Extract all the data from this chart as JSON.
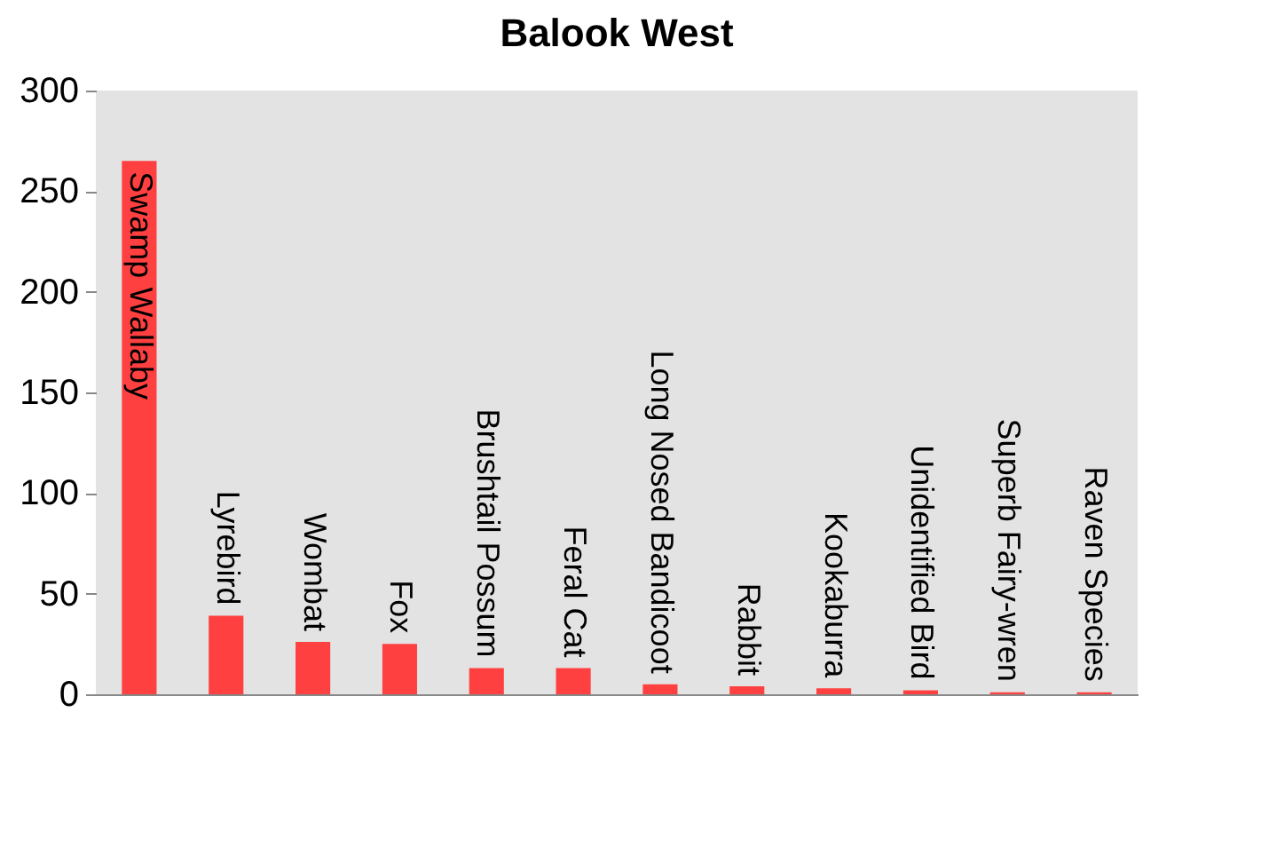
{
  "chart_data": {
    "type": "bar",
    "title": "Balook West",
    "categories": [
      "Swamp Wallaby",
      "Lyrebird",
      "Wombat",
      "Fox",
      "Brushtail Possum",
      "Feral Cat",
      "Long Nosed Bandicoot",
      "Rabbit",
      "Kookaburra",
      "Unidentified Bird",
      "Superb Fairy-wren",
      "Raven Species"
    ],
    "values": [
      265,
      39,
      26,
      25,
      13,
      13,
      5,
      4,
      3,
      2,
      1,
      1
    ],
    "color": "#ff4040",
    "ylim": [
      0,
      300
    ],
    "yticks": [
      0,
      50,
      100,
      150,
      200,
      250,
      300
    ],
    "grid": false
  }
}
